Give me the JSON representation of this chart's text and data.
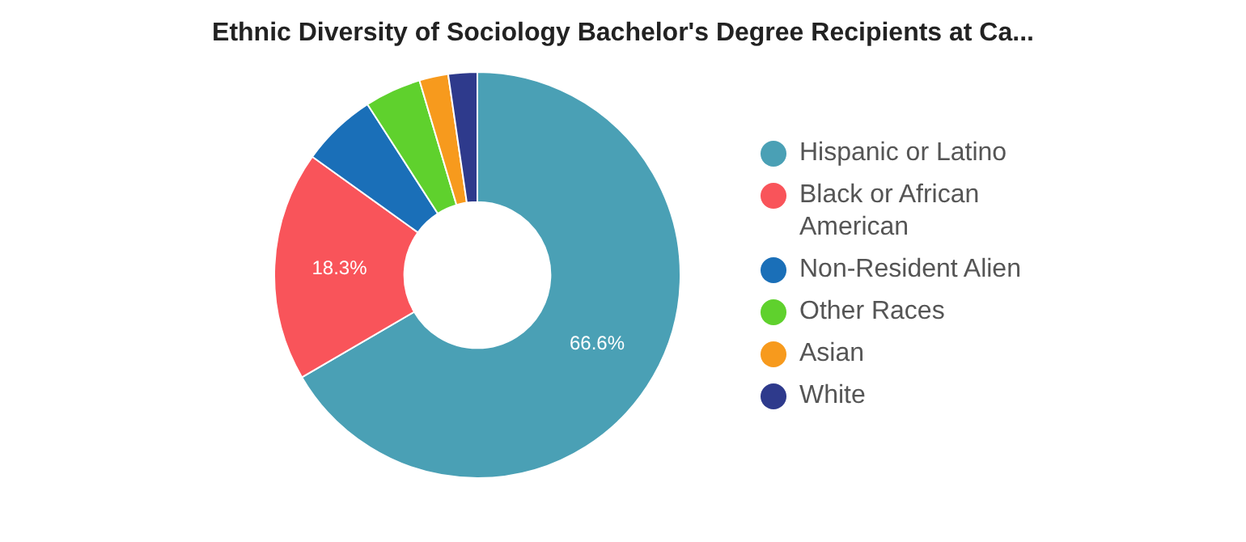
{
  "chart_data": {
    "type": "donut",
    "title": "Ethnic Diversity of Sociology Bachelor's Degree Recipients at Ca...",
    "categories": [
      "Hispanic or Latino",
      "Black or African American",
      "Non-Resident Alien",
      "Other Races",
      "Asian",
      "White"
    ],
    "values": [
      66.6,
      18.3,
      6.0,
      4.5,
      2.3,
      2.3
    ],
    "colors": [
      "#4aa0b5",
      "#f9545a",
      "#1a6fb8",
      "#5fd12d",
      "#f79a1d",
      "#2e3a8c"
    ],
    "value_labels": [
      "66.6%",
      "18.3%",
      null,
      null,
      null,
      null
    ],
    "legend": "right"
  }
}
